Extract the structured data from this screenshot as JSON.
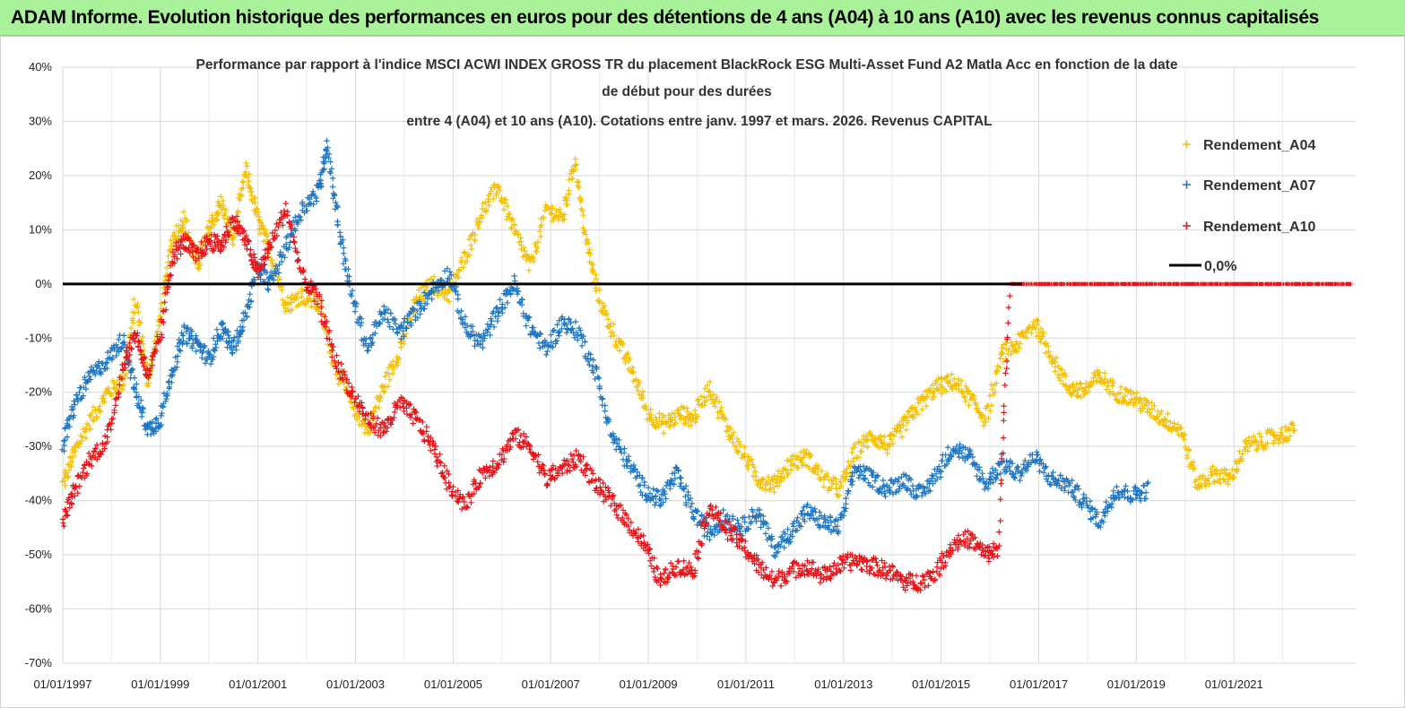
{
  "banner": {
    "text": "ADAM Informe. Evolution historique des performances en euros pour des détentions de 4 ans (A04) à 10 ans (A10) avec les revenus connus capitalisés"
  },
  "colors": {
    "A04": "#f5c000",
    "A07": "#1f77c4",
    "A10": "#e8141a",
    "zero": "#000000",
    "grid": "#d9d9d9",
    "banner": "#a9f29a"
  },
  "chart_data": {
    "type": "scatter",
    "title": [
      "Performance par rapport à l'indice MSCI ACWI INDEX GROSS TR  du placement BlackRock ESG Multi-Asset Fund A2 Matla Acc en fonction de la date",
      "de début pour des durées",
      "entre 4 (A04) et 10 ans (A10). Cotations entre janv. 1997 et mars. 2026. Revenus CAPITAL"
    ],
    "xlabel": "",
    "ylabel": "",
    "xlim": [
      "1997-01-01",
      "2023-07-01"
    ],
    "ylim": [
      -70,
      40
    ],
    "y_ticks": [
      40,
      30,
      20,
      10,
      0,
      -10,
      -20,
      -30,
      -40,
      -50,
      -60,
      -70
    ],
    "y_tick_labels": [
      "40%",
      "30%",
      "20%",
      "10%",
      "0%",
      "-10%",
      "-20%",
      "-30%",
      "-40%",
      "-50%",
      "-60%",
      "-70%"
    ],
    "x_tick_labels": [
      "01/01/1997",
      "01/01/1999",
      "01/01/2001",
      "01/01/2003",
      "01/01/2005",
      "01/01/2007",
      "01/01/2009",
      "01/01/2011",
      "01/01/2013",
      "01/01/2015",
      "01/01/2017",
      "01/01/2019",
      "01/01/2021"
    ],
    "grid": true,
    "legend_position": "top-right",
    "series": [
      {
        "name": "Rendement_A04",
        "marker": "+",
        "points": [
          [
            "1997-01",
            -37
          ],
          [
            "1997-04",
            -31
          ],
          [
            "1997-08",
            -25
          ],
          [
            "1997-12",
            -20
          ],
          [
            "1998-04",
            -18
          ],
          [
            "1998-07",
            -3
          ],
          [
            "1998-10",
            -18
          ],
          [
            "1999-01",
            -6
          ],
          [
            "1999-04",
            8
          ],
          [
            "1999-07",
            12
          ],
          [
            "1999-10",
            3
          ],
          [
            "2000-01",
            10
          ],
          [
            "2000-04",
            15
          ],
          [
            "2000-07",
            8
          ],
          [
            "2000-10",
            21
          ],
          [
            "2001-01",
            12
          ],
          [
            "2001-04",
            6
          ],
          [
            "2001-08",
            -4
          ],
          [
            "2001-12",
            -2
          ],
          [
            "2002-04",
            -4
          ],
          [
            "2002-08",
            -15
          ],
          [
            "2002-12",
            -22
          ],
          [
            "2003-04",
            -27
          ],
          [
            "2003-08",
            -19
          ],
          [
            "2003-12",
            -12
          ],
          [
            "2004-04",
            -3
          ],
          [
            "2004-08",
            0
          ],
          [
            "2004-12",
            -2
          ],
          [
            "2005-04",
            5
          ],
          [
            "2005-08",
            13
          ],
          [
            "2005-12",
            18
          ],
          [
            "2006-04",
            10
          ],
          [
            "2006-08",
            3
          ],
          [
            "2006-12",
            14
          ],
          [
            "2007-04",
            12
          ],
          [
            "2007-07",
            23
          ],
          [
            "2007-10",
            7
          ],
          [
            "2008-01",
            -3
          ],
          [
            "2008-05",
            -10
          ],
          [
            "2008-09",
            -16
          ],
          [
            "2009-01",
            -24
          ],
          [
            "2009-05",
            -26
          ],
          [
            "2009-09",
            -24
          ],
          [
            "2009-12",
            -25
          ],
          [
            "2010-04",
            -19
          ],
          [
            "2010-08",
            -26
          ],
          [
            "2010-12",
            -31
          ],
          [
            "2011-04",
            -36
          ],
          [
            "2011-08",
            -37
          ],
          [
            "2011-12",
            -33
          ],
          [
            "2012-04",
            -32
          ],
          [
            "2012-08",
            -36
          ],
          [
            "2012-12",
            -38
          ],
          [
            "2013-04",
            -31
          ],
          [
            "2013-08",
            -28
          ],
          [
            "2013-12",
            -30
          ],
          [
            "2014-04",
            -26
          ],
          [
            "2014-08",
            -22
          ],
          [
            "2014-12",
            -19
          ],
          [
            "2015-04",
            -18
          ],
          [
            "2015-08",
            -21
          ],
          [
            "2015-12",
            -25
          ],
          [
            "2016-04",
            -13
          ],
          [
            "2016-08",
            -11
          ],
          [
            "2016-12",
            -7
          ],
          [
            "2017-04",
            -13
          ],
          [
            "2017-08",
            -19
          ],
          [
            "2017-12",
            -20
          ],
          [
            "2018-04",
            -17
          ],
          [
            "2018-08",
            -20
          ],
          [
            "2018-12",
            -21
          ],
          [
            "2019-04",
            -23
          ],
          [
            "2019-08",
            -25
          ],
          [
            "2019-12",
            -27
          ],
          [
            "2020-04",
            -37
          ],
          [
            "2020-08",
            -35
          ],
          [
            "2020-12",
            -36
          ],
          [
            "2021-04",
            -30
          ],
          [
            "2021-08",
            -29
          ],
          [
            "2021-12",
            -28
          ],
          [
            "2022-04",
            -27
          ]
        ]
      },
      {
        "name": "Rendement_A07",
        "marker": "+",
        "points": [
          [
            "1997-01",
            -30
          ],
          [
            "1997-04",
            -22
          ],
          [
            "1997-08",
            -17
          ],
          [
            "1997-12",
            -14
          ],
          [
            "1998-04",
            -10
          ],
          [
            "1998-07",
            -20
          ],
          [
            "1998-10",
            -27
          ],
          [
            "1999-01",
            -25
          ],
          [
            "1999-04",
            -16
          ],
          [
            "1999-07",
            -9
          ],
          [
            "1999-10",
            -11
          ],
          [
            "2000-01",
            -14
          ],
          [
            "2000-04",
            -8
          ],
          [
            "2000-07",
            -12
          ],
          [
            "2000-10",
            -6
          ],
          [
            "2001-01",
            3
          ],
          [
            "2001-04",
            0
          ],
          [
            "2001-08",
            7
          ],
          [
            "2001-12",
            14
          ],
          [
            "2002-04",
            17
          ],
          [
            "2002-06",
            26
          ],
          [
            "2002-09",
            10
          ],
          [
            "2002-12",
            -2
          ],
          [
            "2003-04",
            -12
          ],
          [
            "2003-08",
            -5
          ],
          [
            "2003-12",
            -9
          ],
          [
            "2004-04",
            -5
          ],
          [
            "2004-08",
            -1
          ],
          [
            "2004-12",
            2
          ],
          [
            "2005-04",
            -8
          ],
          [
            "2005-08",
            -11
          ],
          [
            "2005-12",
            -5
          ],
          [
            "2006-04",
            0
          ],
          [
            "2006-08",
            -8
          ],
          [
            "2006-12",
            -12
          ],
          [
            "2007-04",
            -7
          ],
          [
            "2007-08",
            -9
          ],
          [
            "2007-12",
            -16
          ],
          [
            "2008-04",
            -28
          ],
          [
            "2008-08",
            -33
          ],
          [
            "2008-12",
            -38
          ],
          [
            "2009-04",
            -40
          ],
          [
            "2009-08",
            -35
          ],
          [
            "2009-12",
            -42
          ],
          [
            "2010-04",
            -46
          ],
          [
            "2010-08",
            -43
          ],
          [
            "2010-12",
            -45
          ],
          [
            "2011-04",
            -42
          ],
          [
            "2011-08",
            -49
          ],
          [
            "2011-12",
            -46
          ],
          [
            "2012-04",
            -42
          ],
          [
            "2012-08",
            -44
          ],
          [
            "2012-12",
            -45
          ],
          [
            "2013-04",
            -34
          ],
          [
            "2013-08",
            -36
          ],
          [
            "2013-12",
            -38
          ],
          [
            "2014-04",
            -36
          ],
          [
            "2014-08",
            -39
          ],
          [
            "2014-12",
            -35
          ],
          [
            "2015-04",
            -30
          ],
          [
            "2015-08",
            -32
          ],
          [
            "2015-12",
            -37
          ],
          [
            "2016-04",
            -33
          ],
          [
            "2016-08",
            -35
          ],
          [
            "2016-12",
            -32
          ],
          [
            "2017-04",
            -36
          ],
          [
            "2017-08",
            -37
          ],
          [
            "2017-12",
            -40
          ],
          [
            "2018-04",
            -44
          ],
          [
            "2018-08",
            -38
          ],
          [
            "2018-12",
            -39
          ],
          [
            "2019-04",
            -38
          ]
        ]
      },
      {
        "name": "Rendement_A10",
        "marker": "+",
        "points": [
          [
            "1997-01",
            -44
          ],
          [
            "1997-04",
            -38
          ],
          [
            "1997-08",
            -32
          ],
          [
            "1997-12",
            -29
          ],
          [
            "1998-04",
            -15
          ],
          [
            "1998-07",
            -9
          ],
          [
            "1998-10",
            -17
          ],
          [
            "1999-01",
            -10
          ],
          [
            "1999-04",
            5
          ],
          [
            "1999-07",
            8
          ],
          [
            "1999-10",
            5
          ],
          [
            "2000-01",
            8
          ],
          [
            "2000-04",
            7
          ],
          [
            "2000-07",
            12
          ],
          [
            "2000-10",
            8
          ],
          [
            "2001-01",
            2
          ],
          [
            "2001-04",
            7
          ],
          [
            "2001-08",
            14
          ],
          [
            "2001-12",
            1
          ],
          [
            "2002-04",
            -3
          ],
          [
            "2002-08",
            -14
          ],
          [
            "2002-12",
            -20
          ],
          [
            "2003-04",
            -25
          ],
          [
            "2003-08",
            -27
          ],
          [
            "2003-12",
            -22
          ],
          [
            "2004-04",
            -25
          ],
          [
            "2004-08",
            -30
          ],
          [
            "2004-12",
            -37
          ],
          [
            "2005-04",
            -41
          ],
          [
            "2005-08",
            -35
          ],
          [
            "2005-12",
            -33
          ],
          [
            "2006-04",
            -28
          ],
          [
            "2006-08",
            -30
          ],
          [
            "2006-12",
            -36
          ],
          [
            "2007-04",
            -34
          ],
          [
            "2007-08",
            -32
          ],
          [
            "2007-12",
            -37
          ],
          [
            "2008-04",
            -40
          ],
          [
            "2008-08",
            -44
          ],
          [
            "2008-12",
            -48
          ],
          [
            "2009-04",
            -55
          ],
          [
            "2009-08",
            -52
          ],
          [
            "2009-12",
            -53
          ],
          [
            "2010-04",
            -41
          ],
          [
            "2010-08",
            -45
          ],
          [
            "2010-12",
            -48
          ],
          [
            "2011-04",
            -52
          ],
          [
            "2011-08",
            -55
          ],
          [
            "2011-12",
            -53
          ],
          [
            "2012-04",
            -52
          ],
          [
            "2012-08",
            -54
          ],
          [
            "2012-12",
            -52
          ],
          [
            "2013-04",
            -51
          ],
          [
            "2013-08",
            -52
          ],
          [
            "2013-12",
            -53
          ],
          [
            "2014-04",
            -55
          ],
          [
            "2014-08",
            -55
          ],
          [
            "2014-12",
            -53
          ],
          [
            "2015-04",
            -48
          ],
          [
            "2015-08",
            -47
          ],
          [
            "2015-12",
            -50
          ],
          [
            "2016-03",
            -49
          ],
          [
            "2016-06",
            0
          ],
          [
            "2017-06",
            0
          ],
          [
            "2018-06",
            0
          ],
          [
            "2019-06",
            0
          ],
          [
            "2020-06",
            0
          ],
          [
            "2021-06",
            0
          ],
          [
            "2022-06",
            0
          ],
          [
            "2023-06",
            0
          ]
        ]
      }
    ],
    "reference_line": {
      "name": "0,0%",
      "y": 0
    }
  }
}
